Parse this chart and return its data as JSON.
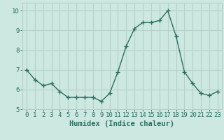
{
  "x": [
    0,
    1,
    2,
    3,
    4,
    5,
    6,
    7,
    8,
    9,
    10,
    11,
    12,
    13,
    14,
    15,
    16,
    17,
    18,
    19,
    20,
    21,
    22,
    23
  ],
  "y": [
    7.0,
    6.5,
    6.2,
    6.3,
    5.9,
    5.6,
    5.6,
    5.6,
    5.6,
    5.4,
    5.8,
    6.9,
    8.2,
    9.1,
    9.4,
    9.4,
    9.5,
    10.0,
    8.7,
    6.9,
    6.3,
    5.8,
    5.7,
    5.9
  ],
  "line_color": "#2d6e62",
  "marker": "+",
  "marker_size": 4,
  "line_width": 1.0,
  "bg_color": "#cce8e0",
  "grid_color": "#b8d0c8",
  "xlabel": "Humidex (Indice chaleur)",
  "xlim": [
    -0.5,
    23.5
  ],
  "ylim": [
    5.0,
    10.4
  ],
  "yticks": [
    5,
    6,
    7,
    8,
    9,
    10
  ],
  "xticks": [
    0,
    1,
    2,
    3,
    4,
    5,
    6,
    7,
    8,
    9,
    10,
    11,
    12,
    13,
    14,
    15,
    16,
    17,
    18,
    19,
    20,
    21,
    22,
    23
  ],
  "tick_label_fontsize": 6.5,
  "xlabel_fontsize": 7.5,
  "tick_color": "#2d6e62"
}
